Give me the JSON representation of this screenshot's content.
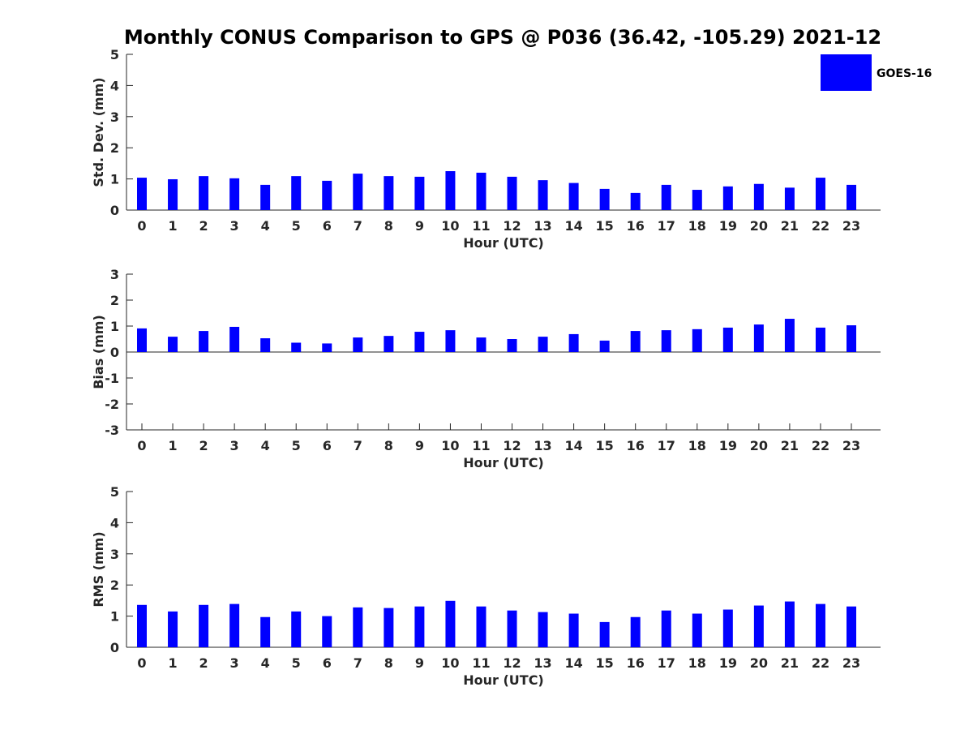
{
  "chart_data": {
    "title": "Monthly CONUS Comparison to GPS @ P036 (36.42, -105.29) 2021-12",
    "legend": {
      "entries": [
        "GOES-16"
      ],
      "placement": "top-right"
    },
    "bar_color": "#0000ff",
    "panels": [
      {
        "type": "bar",
        "ylabel": "Std. Dev. (mm)",
        "xlabel": "Hour (UTC)",
        "ylim": [
          0,
          5
        ],
        "yticks": [
          "0",
          "1",
          "2",
          "3",
          "4",
          "5"
        ],
        "categories": [
          "0",
          "1",
          "2",
          "3",
          "4",
          "5",
          "6",
          "7",
          "8",
          "9",
          "10",
          "11",
          "12",
          "13",
          "14",
          "15",
          "16",
          "17",
          "18",
          "19",
          "20",
          "21",
          "22",
          "23"
        ],
        "series": [
          {
            "name": "GOES-16",
            "values": [
              1.04,
              0.99,
              1.09,
              1.02,
              0.81,
              1.09,
              0.94,
              1.17,
              1.09,
              1.07,
              1.25,
              1.2,
              1.07,
              0.96,
              0.87,
              0.68,
              0.55,
              0.81,
              0.65,
              0.76,
              0.84,
              0.72,
              1.04,
              0.81
            ]
          }
        ]
      },
      {
        "type": "bar",
        "ylabel": "Bias (mm)",
        "xlabel": "Hour (UTC)",
        "ylim": [
          -3,
          3
        ],
        "yticks": [
          "-3",
          "-2",
          "-1",
          "0",
          "1",
          "2",
          "3"
        ],
        "categories": [
          "0",
          "1",
          "2",
          "3",
          "4",
          "5",
          "6",
          "7",
          "8",
          "9",
          "10",
          "11",
          "12",
          "13",
          "14",
          "15",
          "16",
          "17",
          "18",
          "19",
          "20",
          "21",
          "22",
          "23"
        ],
        "series": [
          {
            "name": "GOES-16",
            "values": [
              0.91,
              0.59,
              0.81,
              0.97,
              0.53,
              0.36,
              0.33,
              0.56,
              0.62,
              0.78,
              0.84,
              0.56,
              0.5,
              0.59,
              0.69,
              0.44,
              0.81,
              0.84,
              0.88,
              0.94,
              1.06,
              1.28,
              0.94,
              1.03
            ]
          }
        ]
      },
      {
        "type": "bar",
        "ylabel": "RMS (mm)",
        "xlabel": "Hour (UTC)",
        "ylim": [
          0,
          5
        ],
        "yticks": [
          "0",
          "1",
          "2",
          "3",
          "4",
          "5"
        ],
        "categories": [
          "0",
          "1",
          "2",
          "3",
          "4",
          "5",
          "6",
          "7",
          "8",
          "9",
          "10",
          "11",
          "12",
          "13",
          "14",
          "15",
          "16",
          "17",
          "18",
          "19",
          "20",
          "21",
          "22",
          "23"
        ],
        "series": [
          {
            "name": "GOES-16",
            "values": [
              1.36,
              1.15,
              1.36,
              1.39,
              0.97,
              1.15,
              1.0,
              1.28,
              1.26,
              1.31,
              1.49,
              1.31,
              1.18,
              1.13,
              1.08,
              0.81,
              0.97,
              1.18,
              1.08,
              1.21,
              1.34,
              1.47,
              1.39,
              1.31
            ]
          }
        ]
      }
    ]
  }
}
